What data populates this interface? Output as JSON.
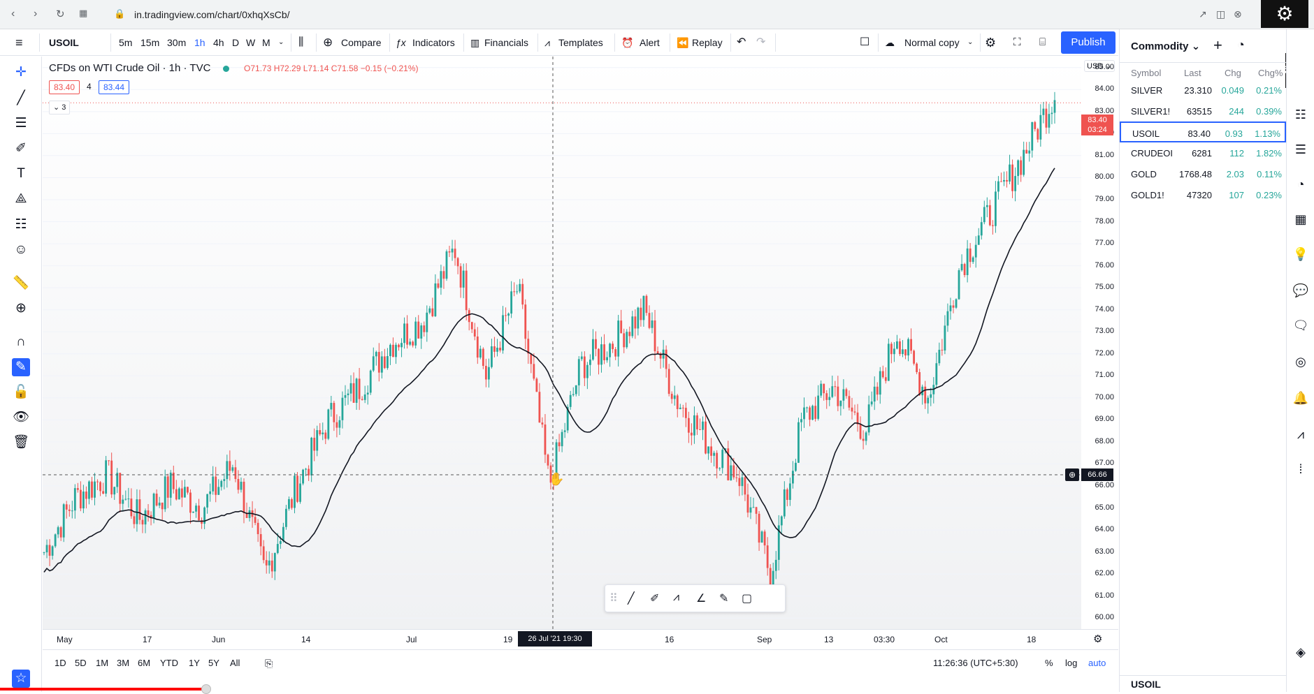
{
  "browser": {
    "url": "in.tradingview.com/chart/0xhqXsCb/"
  },
  "toolbar": {
    "symbol": "USOIL",
    "intervals": [
      "5m",
      "15m",
      "30m",
      "1h",
      "4h",
      "D",
      "W",
      "M"
    ],
    "active_interval": "1h",
    "compare": "Compare",
    "indicators": "Indicators",
    "financials": "Financials",
    "templates": "Templates",
    "alert": "Alert",
    "replay": "Replay",
    "layout_name": "Normal copy",
    "publish": "Publish"
  },
  "legend": {
    "title": "CFDs on WTI Crude Oil · 1h · TVC",
    "ohlc": "O71.73  H72.29  L71.14  C71.58  −0.15 (−0.21%)",
    "bid": "83.40",
    "qty": "4",
    "ask": "83.44",
    "collapsed_count": "3"
  },
  "price_axis": {
    "currency": "USD",
    "ticks": [
      "85.00",
      "84.00",
      "83.00",
      "82.00",
      "81.00",
      "80.00",
      "79.00",
      "78.00",
      "77.00",
      "76.00",
      "75.00",
      "74.00",
      "73.00",
      "72.00",
      "71.00",
      "70.00",
      "69.00",
      "68.00",
      "67.00",
      "66.00",
      "65.00",
      "64.00",
      "63.00",
      "62.00",
      "61.00",
      "60.00"
    ],
    "last_price": "83.40",
    "countdown": "03:24",
    "crosshair_price": "66.66"
  },
  "time_axis": {
    "ticks": [
      "May",
      "17",
      "Jun",
      "14",
      "Jul",
      "19",
      "16",
      "Sep",
      "13",
      "03:30",
      "Oct",
      "18"
    ],
    "crosshair_time": "26 Jul '21   19:30"
  },
  "bottom_bar": {
    "ranges": [
      "1D",
      "5D",
      "1M",
      "3M",
      "6M",
      "YTD",
      "1Y",
      "5Y",
      "All"
    ],
    "clock": "11:26:36 (UTC+5:30)",
    "percent": "%",
    "log": "log",
    "auto": "auto"
  },
  "watchlist": {
    "title": "Commodity",
    "columns": [
      "Symbol",
      "Last",
      "Chg",
      "Chg%"
    ],
    "rows": [
      {
        "symbol": "SILVER",
        "last": "23.310",
        "chg": "0.049",
        "pct": "0.21%"
      },
      {
        "symbol": "SILVER1!",
        "last": "63515",
        "chg": "244",
        "pct": "0.39%"
      },
      {
        "symbol": "USOIL",
        "last": "83.40",
        "chg": "0.93",
        "pct": "1.13%"
      },
      {
        "symbol": "CRUDEOI",
        "last": "6281",
        "chg": "112",
        "pct": "1.82%"
      },
      {
        "symbol": "GOLD",
        "last": "1768.48",
        "chg": "2.03",
        "pct": "0.11%"
      },
      {
        "symbol": "GOLD1!",
        "last": "47320",
        "chg": "107",
        "pct": "0.23%"
      }
    ],
    "selected": "USOIL",
    "footer_symbol": "USOIL"
  },
  "colors": {
    "up": "#26a69a",
    "down": "#ef5350",
    "accent": "#2962ff",
    "ma": "#131722"
  },
  "chart_data": {
    "type": "candlestick",
    "ylim": [
      59.5,
      85.5
    ],
    "ma_label": "",
    "price_path": [
      [
        "May",
        63.0
      ],
      [
        17,
        65.5
      ],
      [
        null,
        66.5
      ],
      [
        null,
        64.5
      ],
      [
        null,
        66.0
      ],
      [
        null,
        65.0
      ],
      [
        null,
        67.0
      ],
      [
        null,
        62.0
      ],
      [
        "Jun",
        66.0
      ],
      [
        14,
        69.0
      ],
      [
        null,
        70.5
      ],
      [
        null,
        72.5
      ],
      [
        null,
        73.5
      ],
      [
        "Jul",
        76.8
      ],
      [
        null,
        71.0
      ],
      [
        null,
        75.0
      ],
      [
        19,
        66.0
      ],
      [
        null,
        71.5
      ],
      [
        null,
        72.5
      ],
      [
        null,
        74.0
      ],
      [
        null,
        70.0
      ],
      [
        16,
        68.0
      ],
      [
        null,
        66.5
      ],
      [
        null,
        62.0
      ],
      [
        "Sep",
        69.0
      ],
      [
        13,
        70.5
      ],
      [
        null,
        68.5
      ],
      [
        null,
        73.0
      ],
      [
        "03:30",
        70.0
      ],
      [
        null,
        76.0
      ],
      [
        "Oct",
        78.5
      ],
      [
        null,
        81.0
      ],
      [
        18,
        83.8
      ]
    ]
  }
}
